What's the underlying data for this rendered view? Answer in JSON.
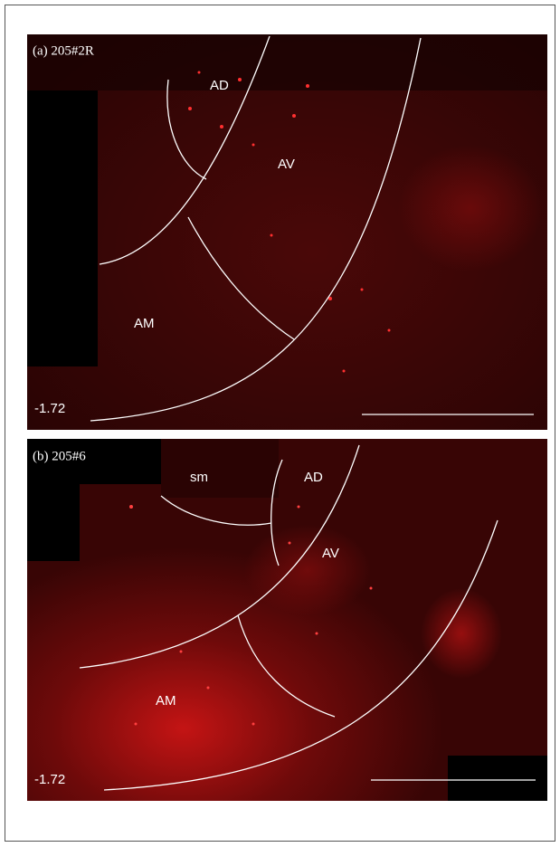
{
  "panels": [
    {
      "label": "(a) 205#2R",
      "regions": [
        "AD",
        "AV",
        "AM"
      ],
      "coordinate": "-1.72"
    },
    {
      "label": "(b) 205#6",
      "regions": [
        "sm",
        "AD",
        "AV",
        "AM"
      ],
      "coordinate": "-1.72"
    }
  ]
}
